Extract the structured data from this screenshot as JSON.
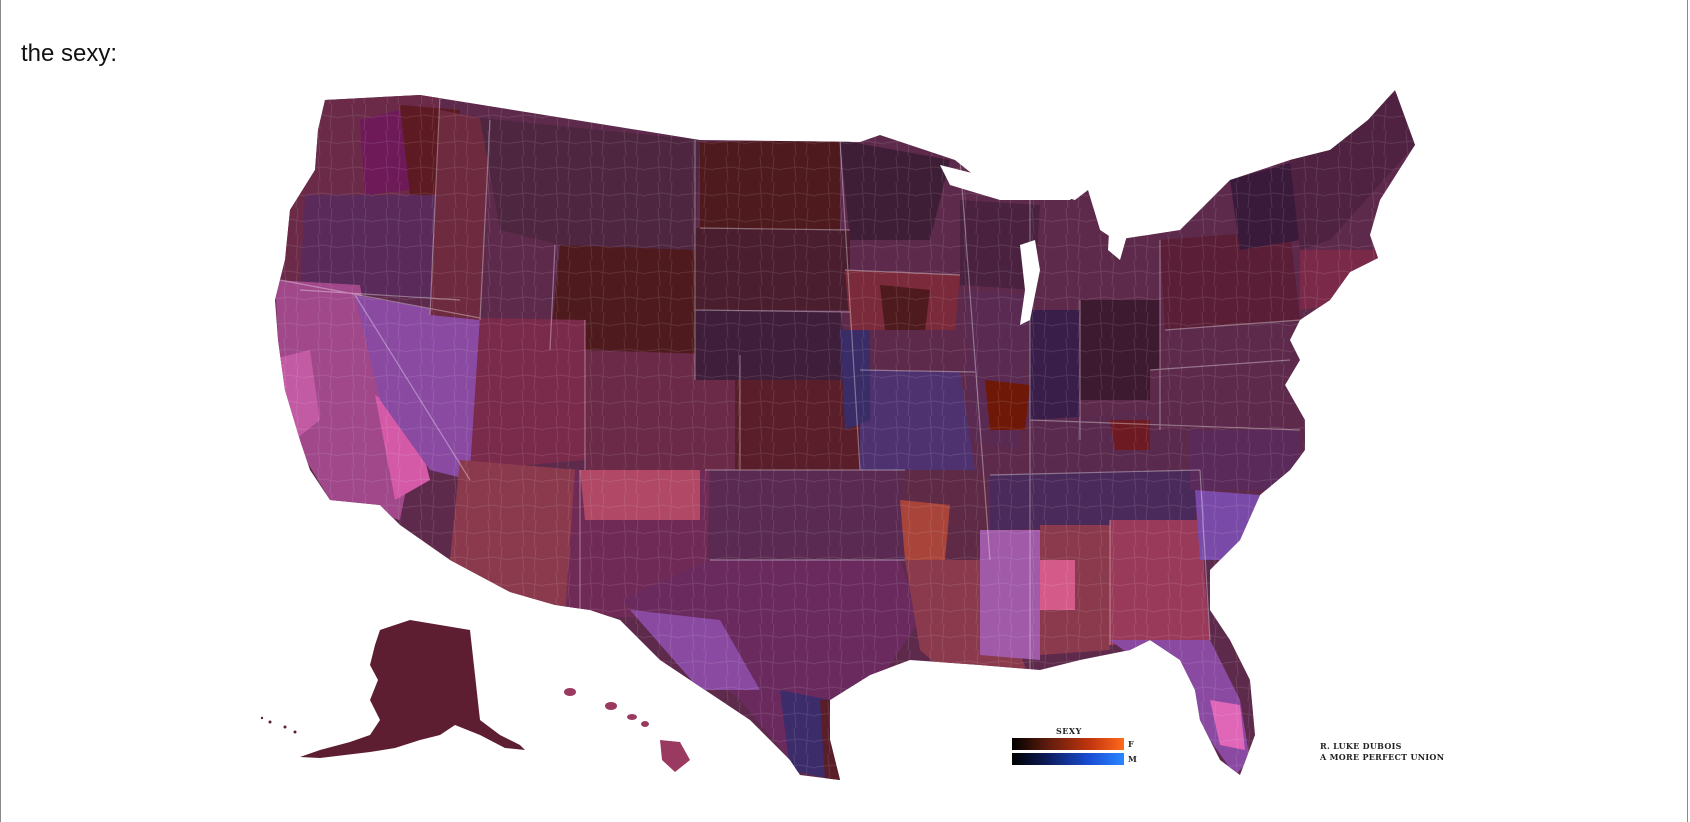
{
  "heading": "the sexy:",
  "legend": {
    "title": "SEXY",
    "female_label": "F",
    "male_label": "M",
    "female_gradient": [
      "#000000",
      "#5a1a0c",
      "#c2360e",
      "#ff6a1c"
    ],
    "male_gradient": [
      "#000000",
      "#0c1a55",
      "#1a4fd6",
      "#2a86ff"
    ]
  },
  "credit": {
    "author": "R. LUKE DUBOIS",
    "project": "A MORE PERFECT UNION"
  },
  "map": {
    "region": "United States (contiguous, Alaska, Hawaii)",
    "palette": {
      "deep_maroon": "#4e1a1e",
      "dark_plum": "#4a2440",
      "plum": "#5e2a4c",
      "wine": "#6e2a3e",
      "rose": "#b04866",
      "violet": "#8a4aa2",
      "indigo": "#3c2c6a",
      "magenta": "#d45aa8",
      "rust": "#6e1808",
      "brick": "#a8443a"
    }
  }
}
